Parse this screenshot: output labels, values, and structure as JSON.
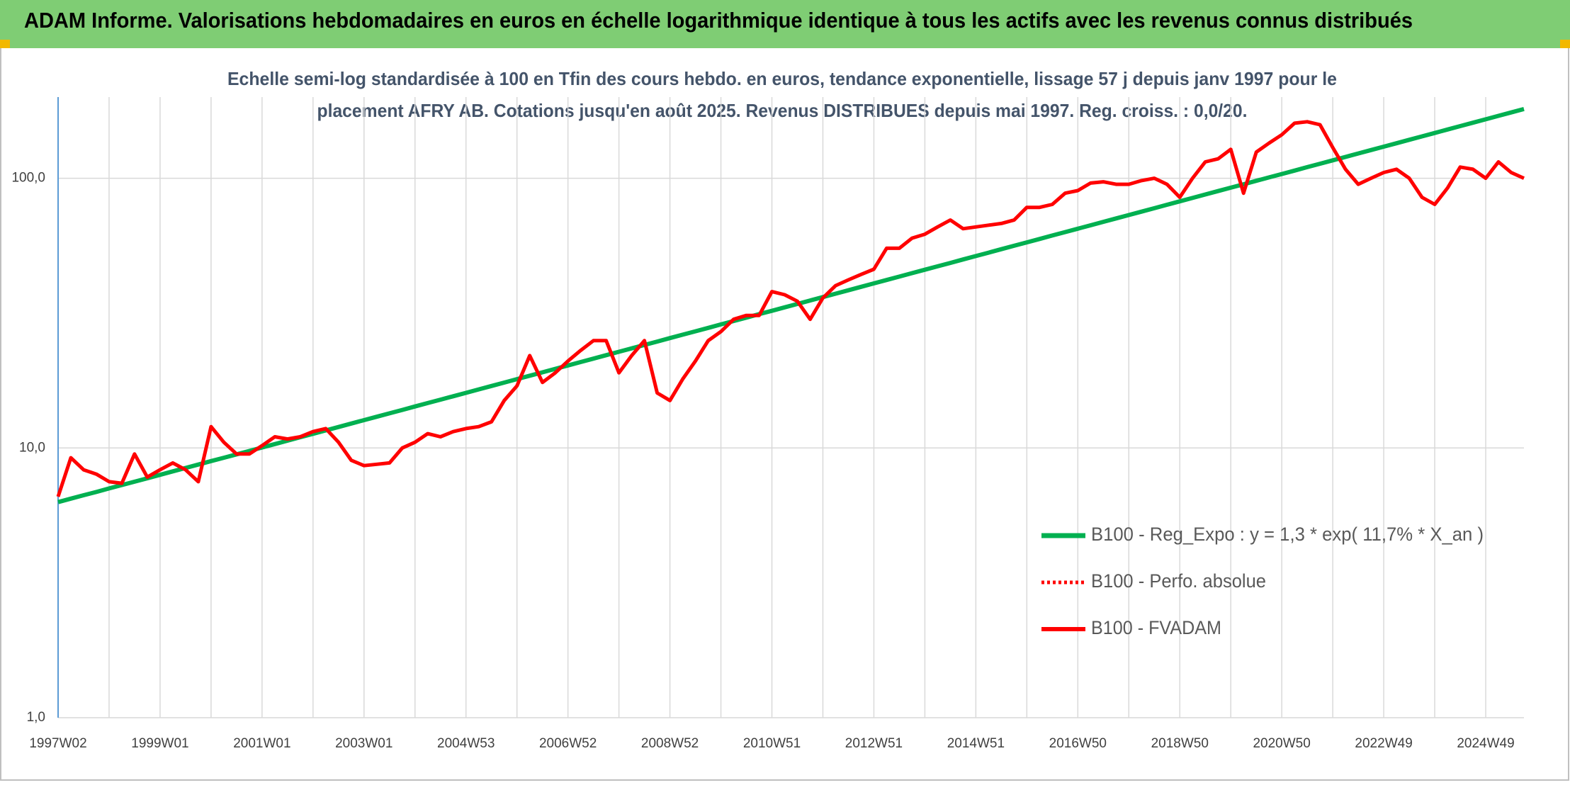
{
  "chart_data": {
    "type": "line",
    "title": "ADAM Informe. Valorisations hebdomadaires en euros en échelle logarithmique identique à tous les actifs avec les revenus connus distribués",
    "subtitle": [
      "Echelle semi-log standardisée à 100 en Tfin des cours hebdo. en euros, tendance exponentielle, lissage 57 j depuis janv 1997 pour le",
      "placement AFRY AB. Cotations jusqu'en août 2025. Revenus DISTRIBUES depuis mai 1997. Reg. croiss. : 0,0/20."
    ],
    "categories": [
      "1997W02",
      null,
      null,
      null,
      null,
      null,
      null,
      null,
      "1999W01",
      null,
      null,
      null,
      null,
      null,
      null,
      null,
      "2001W01",
      null,
      null,
      null,
      null,
      null,
      null,
      null,
      "2003W01",
      null,
      null,
      null,
      null,
      null,
      null,
      null,
      "2004W53",
      null,
      null,
      null,
      null,
      null,
      null,
      null,
      "2006W52",
      null,
      null,
      null,
      null,
      null,
      null,
      null,
      "2008W52",
      null,
      null,
      null,
      null,
      null,
      null,
      null,
      "2010W51",
      null,
      null,
      null,
      null,
      null,
      null,
      null,
      "2012W51",
      null,
      null,
      null,
      null,
      null,
      null,
      null,
      "2014W51",
      null,
      null,
      null,
      null,
      null,
      null,
      null,
      "2016W50",
      null,
      null,
      null,
      null,
      null,
      null,
      null,
      "2018W50",
      null,
      null,
      null,
      null,
      null,
      null,
      null,
      "2020W50",
      null,
      null,
      null,
      null,
      null,
      null,
      null,
      "2022W49",
      null,
      null,
      null,
      null,
      null,
      null,
      null,
      "2024W49",
      null,
      null,
      null
    ],
    "series": [
      {
        "name": "B100 - Reg_Expo : y = 1,3 * exp( 11,7% *  X_an )",
        "color": "#00b050",
        "width": 6,
        "values": [
          6.3,
          6.49,
          6.68,
          6.87,
          7.08,
          7.29,
          7.5,
          7.72,
          7.95,
          8.19,
          8.43,
          8.68,
          8.94,
          9.2,
          9.47,
          9.75,
          10.04,
          10.34,
          10.64,
          10.96,
          11.28,
          11.62,
          11.96,
          12.32,
          12.68,
          13.06,
          13.44,
          13.84,
          14.25,
          14.67,
          15.11,
          15.55,
          16.01,
          16.49,
          16.98,
          17.48,
          18,
          18.53,
          19.08,
          19.65,
          20.23,
          20.83,
          21.44,
          22.08,
          22.73,
          23.41,
          24.1,
          24.81,
          25.55,
          26.3,
          27.08,
          27.88,
          28.71,
          29.56,
          30.44,
          31.34,
          32.26,
          33.22,
          34.2,
          35.22,
          36.26,
          37.33,
          38.44,
          39.58,
          40.75,
          41.96,
          43.2,
          44.48,
          45.8,
          47.16,
          48.55,
          49.99,
          51.47,
          53,
          54.57,
          56.18,
          57.85,
          59.56,
          61.33,
          63.14,
          65.01,
          66.94,
          68.92,
          70.96,
          73.06,
          75.23,
          77.45,
          79.75,
          82.11,
          84.54,
          87.05,
          89.62,
          92.28,
          95.01,
          97.83,
          100.72,
          103.71,
          106.78,
          109.94,
          113.2,
          116.55,
          120,
          123.56,
          127.22,
          130.98,
          134.86,
          138.86,
          142.97,
          147.21,
          151.57,
          156.06,
          160.68,
          165.44,
          170.34,
          175.38,
          180.58
        ]
      },
      {
        "name": "B100 - Perfo. absolue",
        "color": "#ff0000",
        "width": 4,
        "dash": true
      },
      {
        "name": "B100 - FVADAM",
        "color": "#ff0000",
        "width": 5,
        "values": [
          6.6,
          9.2,
          8.3,
          8.0,
          7.5,
          7.4,
          9.5,
          7.8,
          8.3,
          8.8,
          8.3,
          7.5,
          12.0,
          10.5,
          9.5,
          9.5,
          10.2,
          11.0,
          10.8,
          11.0,
          11.5,
          11.8,
          10.5,
          9.0,
          8.6,
          8.7,
          8.8,
          10.0,
          10.5,
          11.3,
          11.0,
          11.5,
          11.8,
          12.0,
          12.5,
          15,
          17,
          22,
          17.5,
          19,
          21,
          23,
          25,
          25,
          19,
          22,
          25,
          16,
          15,
          18,
          21,
          25,
          27,
          30,
          31,
          31,
          38,
          37,
          35,
          30,
          36,
          40,
          42,
          44,
          46,
          55,
          55,
          60,
          62,
          66,
          70,
          65,
          66,
          67,
          68,
          70,
          78,
          78,
          80,
          88,
          90,
          96,
          97,
          95,
          95,
          98,
          100,
          95,
          85,
          100,
          115,
          118,
          128,
          88,
          125,
          135,
          145,
          160,
          162,
          158,
          130,
          108,
          95,
          100,
          105,
          108,
          100,
          85,
          80,
          92,
          110,
          108,
          100,
          115,
          105,
          100
        ]
      }
    ],
    "log": true,
    "ylim": [
      1,
      200
    ],
    "yticks": [
      {
        "value": 1,
        "label": "1,0"
      },
      {
        "value": 10,
        "label": "10,0"
      },
      {
        "value": 100,
        "label": "100,0"
      }
    ],
    "grid": true,
    "legend": "lower right"
  }
}
